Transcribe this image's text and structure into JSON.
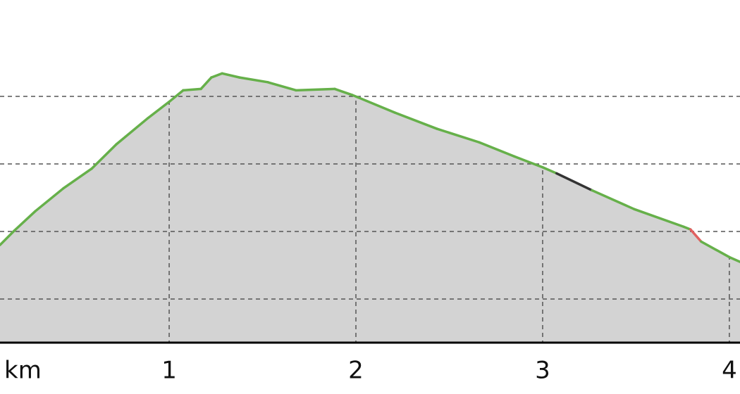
{
  "chart_data": {
    "type": "area",
    "x_label": "km",
    "x": [
      0.094,
      0.17,
      0.283,
      0.434,
      0.585,
      0.717,
      0.887,
      1.0,
      1.075,
      1.17,
      1.226,
      1.283,
      1.377,
      1.528,
      1.679,
      1.887,
      1.981,
      2.208,
      2.434,
      2.66,
      2.849,
      3.0,
      3.075,
      3.264,
      3.491,
      3.755,
      3.792,
      3.849,
      4.0,
      4.057
    ],
    "values": [
      0.8,
      1.01,
      1.3,
      1.64,
      1.93,
      2.29,
      2.68,
      2.92,
      3.09,
      3.11,
      3.28,
      3.34,
      3.28,
      3.21,
      3.09,
      3.11,
      3.02,
      2.76,
      2.52,
      2.32,
      2.11,
      1.95,
      1.86,
      1.61,
      1.33,
      1.07,
      1.03,
      0.85,
      0.62,
      0.55
    ],
    "segment_colors": [
      "#66b04a",
      "#66b04a",
      "#66b04a",
      "#66b04a",
      "#66b04a",
      "#66b04a",
      "#66b04a",
      "#66b04a",
      "#66b04a",
      "#66b04a",
      "#66b04a",
      "#66b04a",
      "#66b04a",
      "#66b04a",
      "#66b04a",
      "#66b04a",
      "#66b04a",
      "#66b04a",
      "#66b04a",
      "#66b04a",
      "#66b04a",
      "#66b04a",
      "#333333",
      "#66b04a",
      "#66b04a",
      "#66b04a",
      "#e06060",
      "#66b04a",
      "#66b04a"
    ],
    "fill": "#d3d3d3",
    "xlim": [
      0.094,
      4.057
    ],
    "xticks": [
      1,
      2,
      3,
      4
    ],
    "ylim": [
      -0.646,
      4.427
    ],
    "ygrid": [
      0,
      1,
      2,
      3
    ],
    "grid": true
  }
}
